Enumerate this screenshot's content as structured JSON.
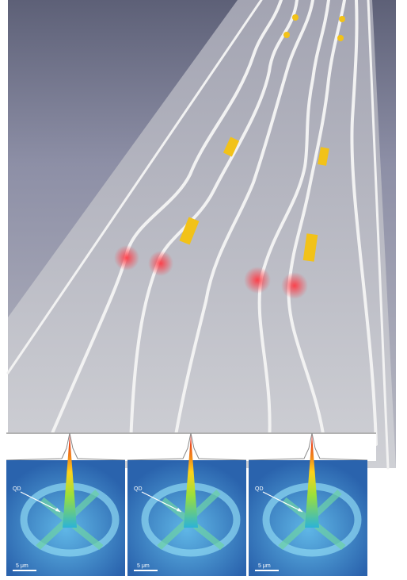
{
  "panels": [
    {
      "label": "QD",
      "scale": "5 μm"
    },
    {
      "label": "QD",
      "scale": "5 μm"
    },
    {
      "label": "QD",
      "scale": "5 μm"
    }
  ]
}
